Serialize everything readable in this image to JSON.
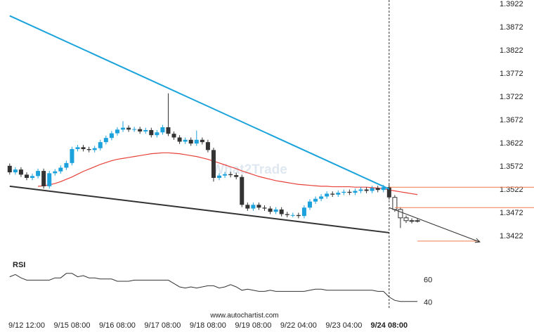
{
  "chart_data": [
    {
      "type": "candlestick",
      "watermark": "What2Trade",
      "source": "www.autochartist.com",
      "categories": [
        null,
        null,
        null,
        "9/12 12:00",
        null,
        null,
        null,
        null,
        null,
        null,
        null,
        "9/15 08:00",
        null,
        null,
        null,
        null,
        null,
        null,
        null,
        "9/16 08:00",
        null,
        null,
        null,
        null,
        null,
        null,
        null,
        "9/17 08:00",
        null,
        null,
        null,
        null,
        null,
        null,
        null,
        "9/18 08:00",
        null,
        null,
        null,
        null,
        null,
        null,
        null,
        "9/19 08:00",
        null,
        null,
        null,
        null,
        null,
        null,
        null,
        "9/22 04:00",
        null,
        null,
        null,
        null,
        null,
        null,
        null,
        "9/23 04:00",
        null,
        null,
        null,
        null,
        null,
        null,
        null,
        "9/24 08:00",
        null,
        null,
        null,
        null,
        null
      ],
      "open": [
        1.3574,
        1.356,
        1.3566,
        1.3555,
        1.3548,
        1.3552,
        1.3563,
        1.353,
        1.3558,
        1.3562,
        1.357,
        1.358,
        1.361,
        1.3614,
        1.361,
        1.3608,
        1.3612,
        1.3625,
        1.3634,
        1.3644,
        1.3652,
        1.3656,
        1.3652,
        1.3653,
        1.3648,
        1.3651,
        1.364,
        1.3646,
        1.3657,
        1.3643,
        1.3635,
        1.3626,
        1.363,
        1.3622,
        1.363,
        1.3625,
        1.3608,
        1.3548,
        1.3553,
        1.3556,
        1.3554,
        1.355,
        1.349,
        1.3482,
        1.349,
        1.3484,
        1.3482,
        1.3475,
        1.348,
        1.347,
        1.3468,
        1.3468,
        1.3466,
        1.3484,
        1.3497,
        1.3503,
        1.3508,
        1.3514,
        1.3512,
        1.3516,
        1.3518,
        1.3516,
        1.352,
        1.3523,
        1.352,
        1.3526,
        1.3522,
        1.3528,
        1.3506,
        1.348,
        1.3462,
        1.3456,
        1.3455
      ],
      "high": [
        1.3579,
        1.3571,
        1.3571,
        1.356,
        1.3557,
        1.3568,
        1.3568,
        1.3563,
        1.3567,
        1.3575,
        1.3585,
        1.3615,
        1.3619,
        1.3619,
        1.3615,
        1.3617,
        1.363,
        1.3639,
        1.3649,
        1.3657,
        1.367,
        1.3661,
        1.3658,
        1.3658,
        1.3656,
        1.3656,
        1.3651,
        1.3662,
        1.373,
        1.3648,
        1.364,
        1.3635,
        1.3635,
        1.365,
        1.3635,
        1.363,
        1.3613,
        1.3558,
        1.3561,
        1.3561,
        1.3559,
        1.3555,
        1.3495,
        1.3495,
        1.3495,
        1.3489,
        1.3487,
        1.3485,
        1.3485,
        1.3475,
        1.3473,
        1.3473,
        1.3489,
        1.3502,
        1.3508,
        1.3513,
        1.3519,
        1.3519,
        1.3521,
        1.3523,
        1.3523,
        1.3525,
        1.3528,
        1.3528,
        1.3531,
        1.3531,
        1.3533,
        1.3533,
        1.3511,
        1.3485,
        1.3467,
        1.3461,
        1.346
      ],
      "low": [
        1.3555,
        1.3555,
        1.355,
        1.3543,
        1.3543,
        1.3547,
        1.3525,
        1.3525,
        1.3553,
        1.3557,
        1.3565,
        1.3575,
        1.3605,
        1.3605,
        1.3603,
        1.3603,
        1.3607,
        1.362,
        1.3629,
        1.3639,
        1.3647,
        1.3647,
        1.3647,
        1.3643,
        1.3643,
        1.3635,
        1.3635,
        1.3641,
        1.3638,
        1.363,
        1.3621,
        1.3621,
        1.3617,
        1.3617,
        1.362,
        1.3603,
        1.354,
        1.3543,
        1.3548,
        1.3549,
        1.3545,
        1.3485,
        1.3477,
        1.3477,
        1.3479,
        1.3477,
        1.347,
        1.347,
        1.3465,
        1.3463,
        1.3463,
        1.3461,
        1.3461,
        1.3479,
        1.3492,
        1.3498,
        1.3503,
        1.3507,
        1.3507,
        1.3511,
        1.3511,
        1.3511,
        1.3515,
        1.3515,
        1.3515,
        1.3517,
        1.3517,
        1.3501,
        1.3475,
        1.344,
        1.3451,
        1.345,
        1.3452
      ],
      "close": [
        1.356,
        1.3566,
        1.3555,
        1.3548,
        1.3552,
        1.3563,
        1.353,
        1.3558,
        1.3562,
        1.357,
        1.358,
        1.361,
        1.3614,
        1.361,
        1.3608,
        1.3612,
        1.3625,
        1.3634,
        1.3644,
        1.3652,
        1.3656,
        1.3652,
        1.3653,
        1.3648,
        1.3651,
        1.364,
        1.3646,
        1.3657,
        1.3643,
        1.3635,
        1.3626,
        1.363,
        1.3622,
        1.363,
        1.3625,
        1.3608,
        1.3548,
        1.3553,
        1.3556,
        1.3554,
        1.355,
        1.349,
        1.3482,
        1.349,
        1.3484,
        1.3482,
        1.3475,
        1.348,
        1.347,
        1.3468,
        1.3468,
        1.3466,
        1.3484,
        1.3497,
        1.3503,
        1.3508,
        1.3514,
        1.3512,
        1.3516,
        1.3518,
        1.3516,
        1.352,
        1.3523,
        1.352,
        1.3526,
        1.3522,
        1.3528,
        1.3506,
        1.348,
        1.3462,
        1.3456,
        1.3455,
        1.3456
      ],
      "up_color": "#1ba1dc",
      "down_color": "#333333",
      "moving_average": {
        "color": "#e8413a",
        "values": [
          null,
          null,
          null,
          null,
          null,
          1.353,
          1.3531,
          1.3533,
          1.3536,
          1.354,
          1.3545,
          1.355,
          1.3556,
          1.3562,
          1.3567,
          1.3572,
          1.3577,
          1.3581,
          1.3585,
          1.3588,
          1.359,
          1.3592,
          1.3594,
          1.3596,
          1.3598,
          1.36,
          1.3601,
          1.3602,
          1.3602,
          1.3601,
          1.36,
          1.3598,
          1.3596,
          1.3594,
          1.3591,
          1.3588,
          1.3584,
          1.358,
          1.3576,
          1.3572,
          1.3568,
          1.3563,
          1.3559,
          1.3555,
          1.3551,
          1.3548,
          1.3545,
          1.3542,
          1.354,
          1.3538,
          1.3536,
          1.3534,
          1.3533,
          1.3532,
          1.3531,
          1.353,
          1.353,
          1.3529,
          1.3529,
          1.3529,
          1.3529,
          1.3528,
          1.3528,
          1.3528,
          1.3527,
          1.3526,
          1.3525,
          1.3522,
          1.352,
          1.3518,
          1.3516,
          1.3514,
          1.3512
        ]
      },
      "trendlines": [
        {
          "color": "#1ba3dc",
          "from": [
            0,
            1.3897
          ],
          "to": [
            67,
            1.3524
          ]
        },
        {
          "color": "#333333",
          "from": [
            0,
            1.353
          ],
          "to": [
            67,
            1.343
          ]
        }
      ],
      "levels": [
        {
          "value": 1.3528,
          "from": 67
        },
        {
          "value": 1.3484,
          "from": 68
        },
        {
          "value": 1.3412,
          "from": 72,
          "to": 83
        }
      ],
      "level_color": "#f07b4a",
      "forecast_arrow": {
        "from": [
          67,
          1.3484
        ],
        "to": [
          83,
          1.341
        ]
      },
      "ylim": [
        1.3386,
        1.3931
      ],
      "yticks": [
        1.3422,
        1.3472,
        1.3522,
        1.3572,
        1.3622,
        1.3672,
        1.3722,
        1.3772,
        1.3822,
        1.3872,
        1.3922
      ]
    },
    {
      "type": "line",
      "title": "RSI",
      "color": "#333333",
      "values": [
        63,
        65,
        62,
        60,
        60,
        60,
        60,
        60,
        62,
        62,
        66,
        66,
        63,
        64,
        62,
        62,
        61,
        61,
        61,
        59,
        59,
        59,
        60,
        60,
        60,
        60,
        60,
        60,
        60,
        57,
        54,
        53,
        54,
        53,
        54,
        55,
        55,
        53,
        54,
        56,
        54,
        51,
        52,
        51,
        50,
        50,
        51,
        50,
        50,
        50,
        50,
        50,
        50,
        51,
        52,
        52,
        51,
        51,
        51,
        51,
        51,
        51,
        51,
        51,
        51,
        50,
        50,
        45,
        42,
        41,
        41,
        41,
        41
      ],
      "ylim": [
        34,
        79
      ],
      "yticks": [
        40,
        60
      ]
    }
  ]
}
